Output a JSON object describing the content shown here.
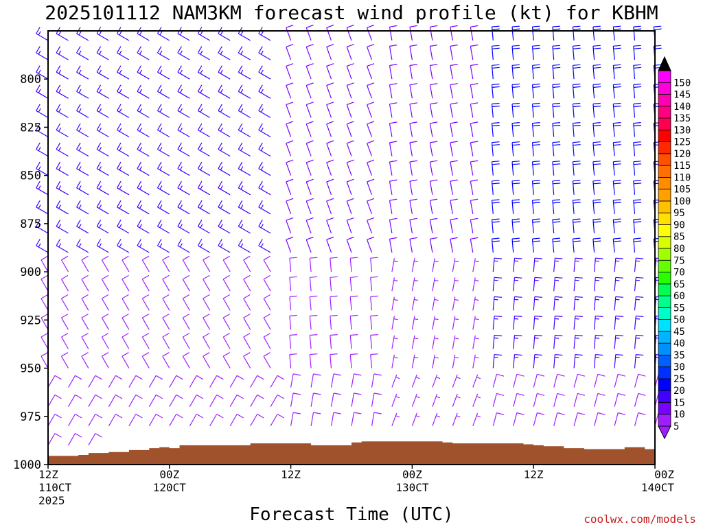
{
  "chart_data": {
    "type": "wind_barb_time_height",
    "title": "2025101112 NAM3KM forecast wind profile (kt) for KBHM",
    "xlabel": "Forecast Time (UTC)",
    "ylabel": "",
    "credit": "coolwx.com/models",
    "x_unit": "hours since 2025-10-11 12Z",
    "xlim": [
      0,
      60
    ],
    "ylim": [
      1000,
      775
    ],
    "y_unit": "hPa",
    "x_ticks": [
      {
        "x": 0,
        "lines": [
          "12Z",
          "110CT",
          "2025"
        ]
      },
      {
        "x": 12,
        "lines": [
          "00Z",
          "120CT"
        ]
      },
      {
        "x": 24,
        "lines": [
          "12Z"
        ]
      },
      {
        "x": 36,
        "lines": [
          "00Z",
          "130CT"
        ]
      },
      {
        "x": 48,
        "lines": [
          "12Z"
        ]
      },
      {
        "x": 60,
        "lines": [
          "00Z",
          "140CT"
        ]
      }
    ],
    "y_ticks": [
      800,
      825,
      850,
      875,
      900,
      925,
      950,
      975,
      1000
    ],
    "levels_hpa": [
      780,
      790,
      800,
      810,
      820,
      830,
      840,
      850,
      860,
      870,
      880,
      890,
      900,
      910,
      920,
      930,
      940,
      950,
      960,
      970,
      980,
      990
    ],
    "times_hr": [
      0,
      2,
      4,
      6,
      8,
      10,
      12,
      14,
      16,
      18,
      20,
      22,
      24,
      26,
      28,
      30,
      32,
      34,
      36,
      38,
      40,
      42,
      44,
      46,
      48,
      50,
      52,
      54,
      56,
      58,
      60
    ],
    "surface_pressure": {
      "times_hr": [
        0,
        1,
        2,
        3,
        4,
        5,
        6,
        7,
        8,
        9,
        10,
        11,
        12,
        13,
        14,
        15,
        16,
        17,
        18,
        19,
        20,
        21,
        22,
        23,
        24,
        25,
        26,
        27,
        28,
        29,
        30,
        31,
        32,
        33,
        34,
        35,
        36,
        37,
        38,
        39,
        40,
        41,
        42,
        43,
        44,
        45,
        46,
        47,
        48,
        49,
        50,
        51,
        52,
        53,
        54,
        55,
        56,
        57,
        58,
        59,
        60
      ],
      "hpa": [
        995.5,
        995.5,
        995.5,
        995.0,
        994.0,
        994.0,
        993.5,
        993.5,
        992.5,
        992.5,
        991.5,
        991.0,
        991.5,
        990.0,
        990.0,
        990.0,
        990.0,
        990.0,
        990.0,
        990.0,
        989.0,
        989.0,
        989.0,
        989.0,
        989.0,
        989.0,
        990.0,
        990.0,
        990.0,
        990.0,
        988.5,
        988.0,
        988.0,
        988.0,
        988.0,
        988.0,
        988.0,
        988.0,
        988.0,
        988.5,
        989.0,
        989.0,
        989.0,
        989.0,
        989.0,
        989.0,
        989.0,
        989.5,
        990.0,
        990.5,
        990.5,
        991.5,
        991.5,
        992.0,
        992.0,
        992.0,
        992.0,
        991.0,
        991.0,
        992.0,
        992.0
      ],
      "fill_color": "#a0522d"
    },
    "colorbar": {
      "labels": [
        "5",
        "10",
        "15",
        "20",
        "25",
        "30",
        "35",
        "40",
        "45",
        "50",
        "55",
        "60",
        "65",
        "70",
        "75",
        "80",
        "85",
        "90",
        "95",
        "100",
        "105",
        "110",
        "115",
        "120",
        "125",
        "130",
        "135",
        "140",
        "145",
        "150"
      ],
      "colors": [
        "#a01eff",
        "#7800ff",
        "#4000ff",
        "#0000ff",
        "#0030ff",
        "#0060ff",
        "#0090ff",
        "#00b4ff",
        "#00e0ff",
        "#00ffc8",
        "#00ff8c",
        "#00ff50",
        "#28ff00",
        "#64ff00",
        "#a0ff00",
        "#d8ff00",
        "#ffff00",
        "#ffe000",
        "#ffc000",
        "#ffa000",
        "#ff8c00",
        "#ff7000",
        "#ff5000",
        "#ff2800",
        "#ff0000",
        "#ff0050",
        "#ff0080",
        "#ff00b0",
        "#ff00dc",
        "#ff00ff"
      ],
      "under_color": "#a01eff",
      "over_color": "#000000"
    },
    "wind_periods": [
      {
        "from_hr": 0,
        "to_hr": 22,
        "upper_dir_deg": 300,
        "upper_speed_kt": 17,
        "lower_dir_deg": 330,
        "lower_speed_kt": 9,
        "low_level_dir_deg": 30,
        "low_level_speed_kt": 9
      },
      {
        "from_hr": 24,
        "to_hr": 32,
        "upper_dir_deg": 340,
        "upper_speed_kt": 12,
        "lower_dir_deg": 355,
        "lower_speed_kt": 9,
        "low_level_dir_deg": 10,
        "low_level_speed_kt": 8
      },
      {
        "from_hr": 34,
        "to_hr": 42,
        "upper_dir_deg": 350,
        "upper_speed_kt": 10,
        "lower_dir_deg": 10,
        "lower_speed_kt": 7,
        "low_level_dir_deg": 20,
        "low_level_speed_kt": 7
      },
      {
        "from_hr": 44,
        "to_hr": 60,
        "upper_dir_deg": 355,
        "upper_speed_kt": 22,
        "lower_dir_deg": 5,
        "lower_speed_kt": 15,
        "low_level_dir_deg": 15,
        "low_level_speed_kt": 8
      }
    ]
  }
}
